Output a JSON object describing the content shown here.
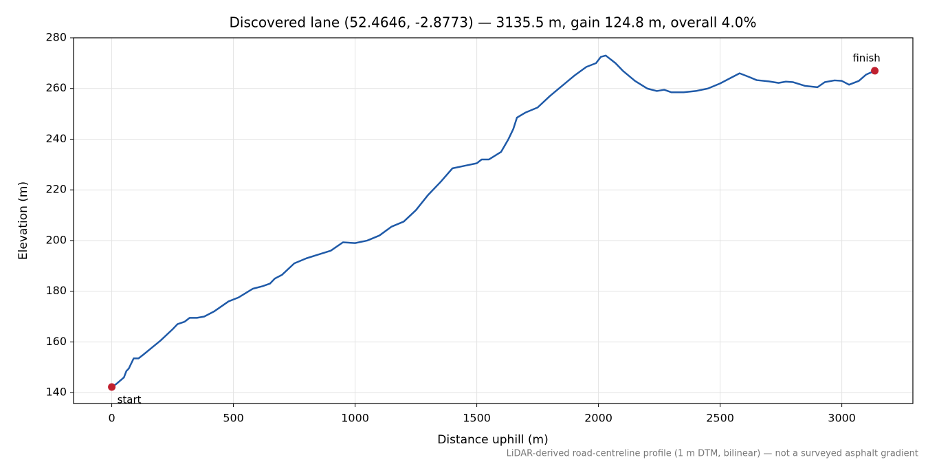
{
  "chart_data": {
    "type": "line",
    "title": "Discovered lane (52.4646, -2.8773) — 3135.5 m, gain 124.8 m, overall 4.0%",
    "x_label": "Distance uphill (m)",
    "y_label": "Elevation (m)",
    "footnote": "LiDAR-derived road-centreline profile (1 m DTM, bilinear) — not a surveyed asphalt gradient",
    "x": [
      0,
      20,
      50,
      60,
      70,
      80,
      90,
      110,
      130,
      200,
      250,
      270,
      300,
      320,
      350,
      380,
      420,
      450,
      480,
      520,
      580,
      620,
      650,
      670,
      700,
      750,
      800,
      850,
      900,
      950,
      1000,
      1050,
      1100,
      1150,
      1200,
      1250,
      1300,
      1350,
      1400,
      1450,
      1500,
      1520,
      1550,
      1600,
      1630,
      1650,
      1665,
      1700,
      1750,
      1800,
      1850,
      1900,
      1950,
      1990,
      2010,
      2030,
      2070,
      2100,
      2150,
      2200,
      2240,
      2270,
      2300,
      2350,
      2400,
      2450,
      2500,
      2550,
      2580,
      2620,
      2650,
      2700,
      2740,
      2770,
      2800,
      2850,
      2900,
      2930,
      2970,
      3000,
      3030,
      3070,
      3100,
      3135.5
    ],
    "series": [
      {
        "name": "Elevation",
        "color": "#1f5aa8",
        "values": [
          142.2,
          143.5,
          146,
          148.5,
          149.5,
          151.5,
          153.5,
          153.5,
          155,
          160.5,
          165,
          167,
          168,
          169.5,
          169.5,
          170,
          172,
          174,
          176,
          177.5,
          181,
          182,
          183,
          185,
          186.5,
          191,
          193,
          194.5,
          196,
          199.3,
          199,
          200,
          202,
          205.5,
          207.5,
          212,
          218,
          223,
          228.5,
          229.5,
          230.5,
          232,
          232,
          235,
          240,
          244,
          248.5,
          250.5,
          252.5,
          257,
          261,
          265,
          268.5,
          270,
          272.5,
          273,
          270,
          267,
          263,
          260,
          259,
          259.5,
          258.5,
          258.5,
          259,
          260,
          262,
          264.5,
          266,
          264.5,
          263.3,
          262.8,
          262.2,
          262.7,
          262.5,
          261,
          260.5,
          262.5,
          263.2,
          263,
          261.5,
          263,
          265.5,
          267
        ]
      }
    ],
    "annotations": [
      {
        "text": "start",
        "x": 0,
        "y": 142.2
      },
      {
        "text": "finish",
        "x": 3135.5,
        "y": 267
      }
    ],
    "marker_color": "#c0202f",
    "xlim": [
      -157,
      3292
    ],
    "ylim": [
      135.7,
      280
    ],
    "xticks": [
      0,
      500,
      1000,
      1500,
      2000,
      2500,
      3000
    ],
    "yticks": [
      140,
      160,
      180,
      200,
      220,
      240,
      260,
      280
    ],
    "grid": true
  }
}
